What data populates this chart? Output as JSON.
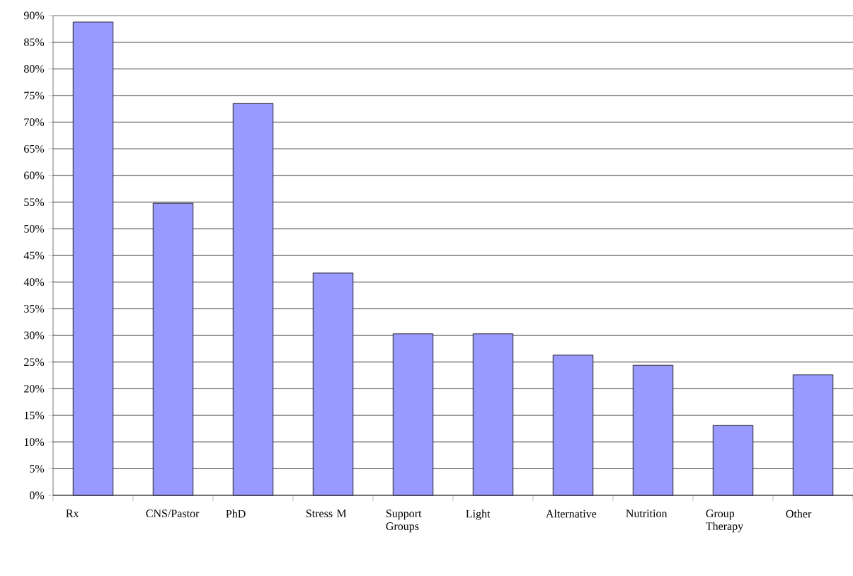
{
  "chart_data": {
    "type": "bar",
    "categories": [
      "Rx",
      "CNS/Pastor",
      "PhD",
      "Stress M",
      "Support Groups",
      "Light",
      "Alternative",
      "Nutrition",
      "Group Therapy",
      "Other"
    ],
    "values": [
      88.8,
      54.8,
      73.5,
      41.7,
      30.3,
      30.3,
      26.3,
      24.4,
      13.1,
      22.6
    ],
    "color": "#9999ff",
    "ylim": [
      0,
      90
    ],
    "yticks": [
      {
        "value": 0,
        "label": "0%"
      },
      {
        "value": 5,
        "label": "5%"
      },
      {
        "value": 10,
        "label": "10%"
      },
      {
        "value": 15,
        "label": "15%"
      },
      {
        "value": 20,
        "label": "20%"
      },
      {
        "value": 25,
        "label": "25%"
      },
      {
        "value": 30,
        "label": "30%"
      },
      {
        "value": 35,
        "label": "35%"
      },
      {
        "value": 40,
        "label": "40%"
      },
      {
        "value": 45,
        "label": "45%"
      },
      {
        "value": 50,
        "label": "50%"
      },
      {
        "value": 55,
        "label": "55%"
      },
      {
        "value": 60,
        "label": "60%"
      },
      {
        "value": 65,
        "label": "65%"
      },
      {
        "value": 70,
        "label": "70%"
      },
      {
        "value": 75,
        "label": "75%"
      },
      {
        "value": 80,
        "label": "80%"
      },
      {
        "value": 85,
        "label": "85%"
      },
      {
        "value": 90,
        "label": "90%"
      }
    ],
    "grid": "y"
  }
}
